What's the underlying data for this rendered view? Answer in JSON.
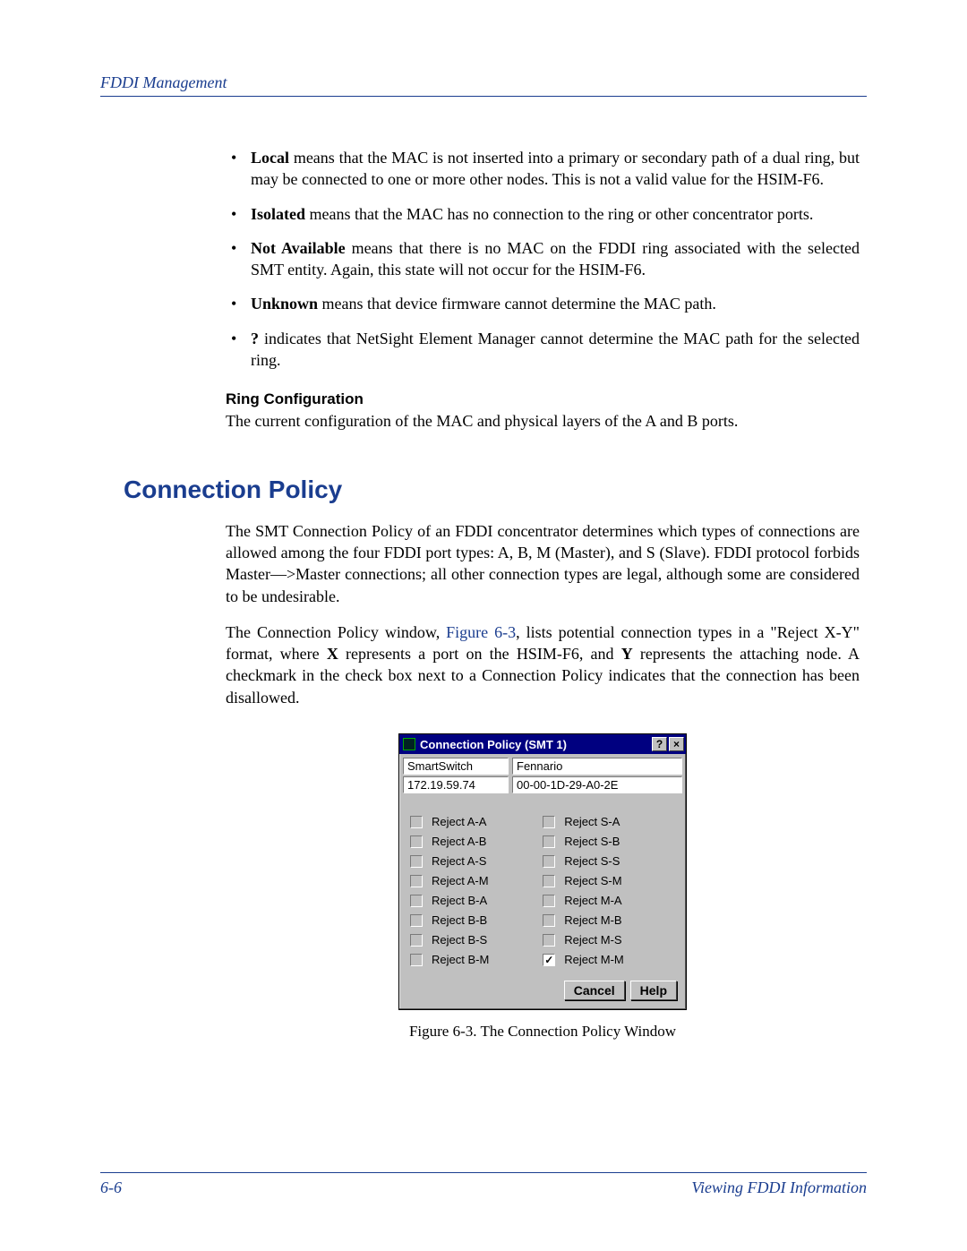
{
  "header": {
    "title": "FDDI Management"
  },
  "bullets": {
    "local_term": "Local",
    "local_rest": " means that the MAC is not inserted into a primary or secondary path of a dual ring, but may be connected to one or more other nodes. This is not a valid value for the HSIM-F6.",
    "isolated_term": "Isolated",
    "isolated_rest": " means that the MAC has no connection to the ring or other concentrator ports.",
    "na_term": "Not Available",
    "na_rest": " means that there is no MAC on the FDDI ring associated with the selected SMT entity. Again, this state will not occur for the HSIM-F6.",
    "unknown_term": "Unknown",
    "unknown_rest": " means that device firmware cannot determine the MAC path.",
    "q_term": "?",
    "q_rest": " indicates that NetSight Element Manager cannot determine the MAC path for the selected ring."
  },
  "ring": {
    "heading": "Ring Configuration",
    "text": "The current configuration of the MAC and physical layers of the A and B ports."
  },
  "section": {
    "title": "Connection Policy"
  },
  "p1": "The SMT Connection Policy of an FDDI concentrator determines which types of connections are allowed among the four FDDI port types: A, B, M (Master), and S (Slave). FDDI protocol forbids Master—>Master connections; all other connection types are legal, although some are considered to be undesirable.",
  "p2_a": "The Connection Policy window, ",
  "p2_link": "Figure 6-3",
  "p2_b": ", lists potential connection types in a \"Reject X-Y\" format, where ",
  "p2_x": "X",
  "p2_c": " represents a port on the HSIM-F6, and ",
  "p2_y": "Y",
  "p2_d": " represents the attaching node. A checkmark in the check box next to a Connection Policy indicates that the connection has been disallowed.",
  "dialog": {
    "title": "Connection Policy (SMT 1)",
    "help_btn": "?",
    "close_btn": "×",
    "device_name": "SmartSwitch",
    "host_name": "Fennario",
    "ip": "172.19.59.74",
    "mac": "00-00-1D-29-A0-2E",
    "left": [
      "Reject A-A",
      "Reject A-B",
      "Reject A-S",
      "Reject A-M",
      "Reject B-A",
      "Reject B-B",
      "Reject B-S",
      "Reject B-M"
    ],
    "right": [
      "Reject S-A",
      "Reject S-B",
      "Reject S-S",
      "Reject S-M",
      "Reject M-A",
      "Reject M-B",
      "Reject M-S",
      "Reject M-M"
    ],
    "checked_index_right": 7,
    "cancel": "Cancel",
    "help": "Help"
  },
  "caption": "Figure 6-3. The Connection Policy Window",
  "footer": {
    "page": "6-6",
    "section": "Viewing FDDI Information"
  },
  "colors": {
    "brand": "#1a3d8f",
    "win_bg": "#c0c0c0",
    "titlebar": "#000080"
  }
}
